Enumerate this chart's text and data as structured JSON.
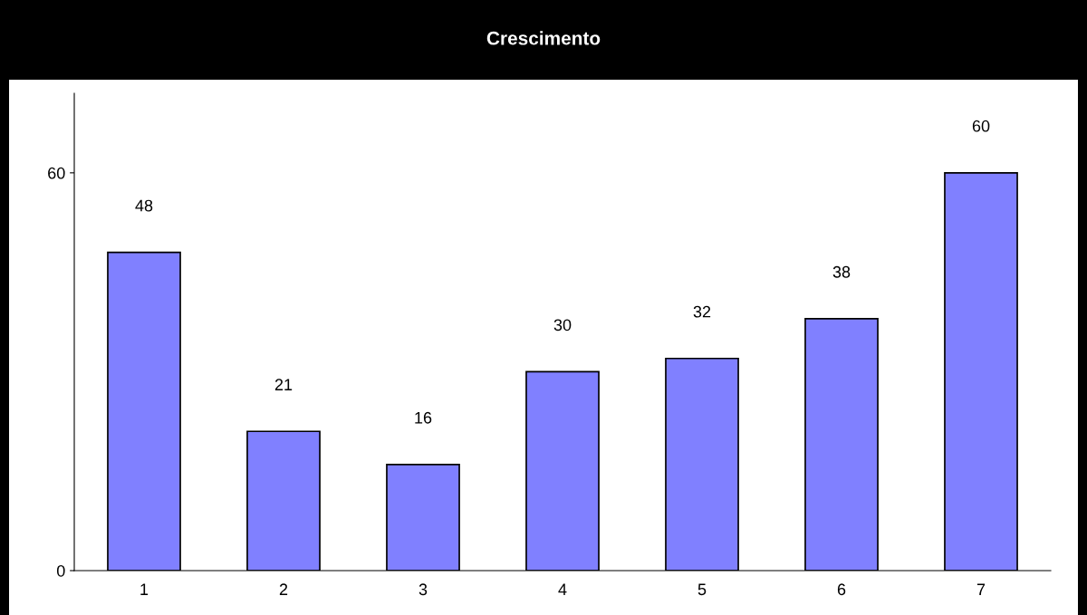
{
  "chart_data": {
    "type": "bar",
    "title": "Crescimento",
    "categories": [
      "1",
      "2",
      "3",
      "4",
      "5",
      "6",
      "7"
    ],
    "values": [
      48,
      21,
      16,
      30,
      32,
      38,
      60
    ],
    "color": "#8080ff",
    "ylim": [
      0,
      72
    ],
    "yticks": [
      0,
      60
    ],
    "data_labels": true,
    "grid": false
  }
}
